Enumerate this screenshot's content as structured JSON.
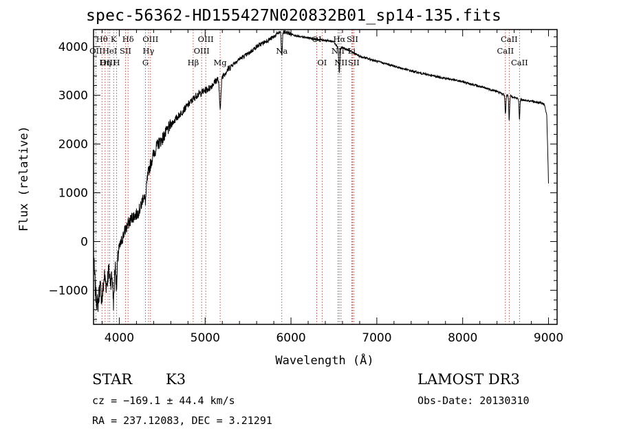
{
  "chart_data": {
    "type": "line",
    "title": "spec-56362-HD155427N020832B01_sp14-135.fits",
    "xlabel": "Wavelength (Å)",
    "ylabel": "Flux (relative)",
    "xlim": [
      3700,
      9100
    ],
    "ylim": [
      -1700,
      4350
    ],
    "xticks": [
      4000,
      5000,
      6000,
      7000,
      8000,
      9000
    ],
    "yticks": [
      -1000,
      0,
      1000,
      2000,
      3000,
      4000
    ],
    "grid": false,
    "series": [
      {
        "name": "spectrum",
        "x": [
          3700,
          3725,
          3750,
          3775,
          3800,
          3825,
          3850,
          3875,
          3900,
          3950,
          4000,
          4050,
          4100,
          4150,
          4200,
          4250,
          4300,
          4350,
          4400,
          4450,
          4500,
          4600,
          4700,
          4800,
          4850,
          4900,
          4950,
          5000,
          5050,
          5100,
          5150,
          5200,
          5300,
          5400,
          5500,
          5600,
          5700,
          5800,
          5850,
          5900,
          5950,
          6000,
          6100,
          6200,
          6300,
          6400,
          6500,
          6560,
          6600,
          6700,
          6800,
          7000,
          7200,
          7400,
          7600,
          7800,
          8000,
          8200,
          8400,
          8498,
          8542,
          8600,
          8662,
          8800,
          8900,
          8950,
          8980,
          9000
        ],
        "y": [
          -300,
          -1100,
          -1300,
          -900,
          -1200,
          -700,
          -900,
          -600,
          -800,
          -400,
          -150,
          150,
          350,
          500,
          550,
          700,
          1100,
          1500,
          1800,
          2000,
          2100,
          2400,
          2600,
          2800,
          2900,
          3000,
          3050,
          3100,
          3150,
          3250,
          3350,
          3400,
          3600,
          3750,
          3850,
          4000,
          4100,
          4200,
          4280,
          4300,
          4290,
          4260,
          4200,
          4180,
          4150,
          4130,
          4100,
          3950,
          3980,
          3900,
          3800,
          3700,
          3600,
          3500,
          3420,
          3350,
          3280,
          3180,
          3080,
          3000,
          3000,
          2960,
          2920,
          2880,
          2850,
          2820,
          2600,
          1200
        ]
      }
    ],
    "lines": [
      {
        "label": "Hθ",
        "wl": 3798,
        "row": 1
      },
      {
        "label": "OII",
        "wl": 3727,
        "row": 2
      },
      {
        "label": "OIII",
        "wl": 3869,
        "row": 3
      },
      {
        "label": "K",
        "wl": 3934,
        "row": 1
      },
      {
        "label": "HeI",
        "wl": 3889,
        "row": 2
      },
      {
        "label": "Hη",
        "wl": 3835,
        "row": 3
      },
      {
        "label": "H",
        "wl": 3969,
        "row": 3
      },
      {
        "label": "SII",
        "wl": 4072,
        "row": 2
      },
      {
        "label": "Hδ",
        "wl": 4102,
        "row": 1
      },
      {
        "label": "OIII",
        "wl": 4363,
        "row": 1
      },
      {
        "label": "Hγ",
        "wl": 4340,
        "row": 2
      },
      {
        "label": "G",
        "wl": 4305,
        "row": 3
      },
      {
        "label": "Hβ",
        "wl": 4861,
        "row": 3
      },
      {
        "label": "OIII",
        "wl": 5007,
        "row": 1
      },
      {
        "label": "OIII",
        "wl": 4959,
        "row": 2
      },
      {
        "label": "Mg",
        "wl": 5175,
        "row": 3
      },
      {
        "label": "Na",
        "wl": 5893,
        "row": 2
      },
      {
        "label": "OI",
        "wl": 6300,
        "row": 1
      },
      {
        "label": "OI",
        "wl": 6363,
        "row": 3
      },
      {
        "label": "Hα",
        "wl": 6563,
        "row": 1
      },
      {
        "label": "NII",
        "wl": 6548,
        "row": 2
      },
      {
        "label": "NII",
        "wl": 6583,
        "row": 3
      },
      {
        "label": "SII",
        "wl": 6716,
        "row": 1
      },
      {
        "label": "Li",
        "wl": 6708,
        "row": 2
      },
      {
        "label": "SII",
        "wl": 6731,
        "row": 3
      },
      {
        "label": "CaII",
        "wl": 8542,
        "row": 1
      },
      {
        "label": "CaII",
        "wl": 8498,
        "row": 2
      },
      {
        "label": "CaII",
        "wl": 8662,
        "row": 3
      }
    ]
  },
  "info": {
    "object_class": "STAR",
    "subclass": "K3",
    "survey": "LAMOST DR3",
    "redshift": "cz = −169.1 ± 44.4 km/s",
    "obs_date": "Obs-Date: 20130310",
    "coords": "RA = 237.12083, DEC =   3.21291"
  }
}
